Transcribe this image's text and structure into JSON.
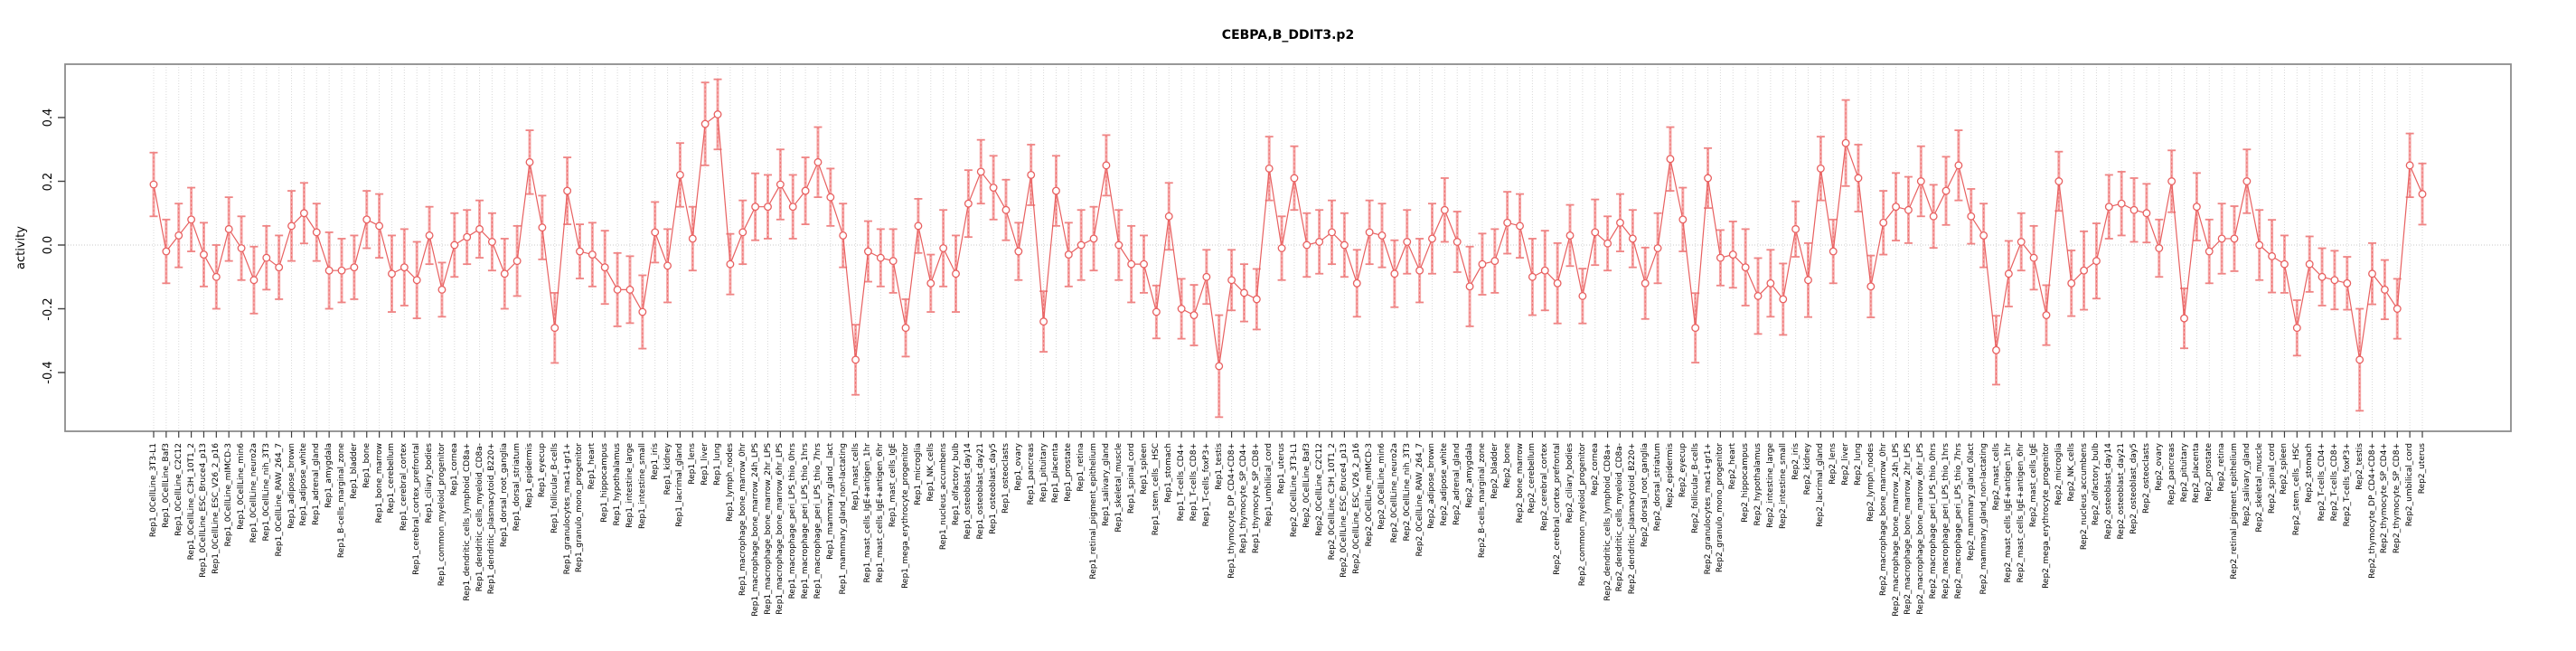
{
  "chart_data": {
    "type": "line",
    "title": "CEBPA,B_DDIT3.p2",
    "ylabel": "activity",
    "xlabel": "",
    "ylim": [
      -0.584,
      0.567
    ],
    "yticks": [
      -0.4,
      -0.2,
      0.0,
      0.2,
      0.4
    ],
    "ytick_labels": [
      "-0.4",
      "-0.2",
      "0.0",
      "0.2",
      "0.4"
    ],
    "grid": "vertical dotted gridline at every sample; horizontal dotted line at y=0",
    "legend": "none",
    "marker": "open-circle",
    "error_bars": "symmetric, capped",
    "replicate_groups": [
      "Rep1",
      "Rep2"
    ],
    "n_samples": 182,
    "colors": {
      "series": "#e86060",
      "errorbar_fill": "#f5a8a8",
      "errorbar_cap": "#ef8484",
      "errorbar_dash": "#ee6f6f",
      "grid": "#d9d9d9",
      "zero_line": "#c9c9c9",
      "box": "#8c8c8c",
      "tick": "#404040",
      "text": "#000000"
    },
    "categories": [
      "Rep1_0CellLine_3T3-L1",
      "Rep1_0CellLine_Baf3",
      "Rep1_0CellLine_C2C12",
      "Rep1_0CellLine_C3H_10T1_2",
      "Rep1_0CellLine_ESC_Bruce4_p13",
      "Rep1_0CellLine_ESC_V26_2_p16",
      "Rep1_0CellLine_mIMCD-3",
      "Rep1_0CellLine_min6",
      "Rep1_0CellLine_neuro2a",
      "Rep1_0CellLine_nih_3T3",
      "Rep1_0CellLine_RAW_264_7",
      "Rep1_adipose_brown",
      "Rep1_adipose_white",
      "Rep1_adrenal_gland",
      "Rep1_amygdala",
      "Rep1_B-cells_marginal_zone",
      "Rep1_bladder",
      "Rep1_bone",
      "Rep1_bone_marrow",
      "Rep1_cerebellum",
      "Rep1_cerebral_cortex",
      "Rep1_cerebral_cortex_prefrontal",
      "Rep1_ciliary_bodies",
      "Rep1_common_myeloid_progenitor",
      "Rep1_cornea",
      "Rep1_dendritic_cells_lymphoid_CD8a+",
      "Rep1_dendritic_cells_myeloid_CD8a-",
      "Rep1_dendritic_plasmacytoid_B220+",
      "Rep1_dorsal_root_ganglia",
      "Rep1_dorsal_striatum",
      "Rep1_epidermis",
      "Rep1_eyecup",
      "Rep1_follicular_B-cells",
      "Rep1_granulocytes_mac1+gr1+",
      "Rep1_granulo_mono_progenitor",
      "Rep1_heart",
      "Rep1_hippocampus",
      "Rep1_hypothalamus",
      "Rep1_intestine_large",
      "Rep1_intestine_small",
      "Rep1_iris",
      "Rep1_kidney",
      "Rep1_lacrimal_gland",
      "Rep1_lens",
      "Rep1_liver",
      "Rep1_lung",
      "Rep1_lymph_nodes",
      "Rep1_macrophage_bone_marrow_0hr",
      "Rep1_macrophage_bone_marrow_24h_LPS",
      "Rep1_macrophage_bone_marrow_2hr_LPS",
      "Rep1_macrophage_bone_marrow_6hr_LPS",
      "Rep1_macrophage_peri_LPS_thio_0hrs",
      "Rep1_macrophage_peri_LPS_thio_1hrs",
      "Rep1_macrophage_peri_LPS_thio_7hrs",
      "Rep1_mammary_gland__lact",
      "Rep1_mammary_gland_non-lactating",
      "Rep1_mast_cells",
      "Rep1_mast_cells_IgE+antigen_1hr",
      "Rep1_mast_cells_IgE+antigen_6hr",
      "Rep1_mast_cells_IgE",
      "Rep1_mega_erythrocyte_progenitor",
      "Rep1_microglia",
      "Rep1_NK_cells",
      "Rep1_nucleus_accumbens",
      "Rep1_olfactory_bulb",
      "Rep1_osteoblast_day14",
      "Rep1_osteoblast_day21",
      "Rep1_osteoblast_day5",
      "Rep1_osteoclasts",
      "Rep1_ovary",
      "Rep1_pancreas",
      "Rep1_pituitary",
      "Rep1_placenta",
      "Rep1_prostate",
      "Rep1_retina",
      "Rep1_retinal_pigment_epithelium",
      "Rep1_salivary_gland",
      "Rep1_skeletal_muscle",
      "Rep1_spinal_cord",
      "Rep1_spleen",
      "Rep1_stem_cells__HSC",
      "Rep1_stomach",
      "Rep1_T-cells_CD4+",
      "Rep1_T-cells_CD8+",
      "Rep1_T-cells_foxP3+",
      "Rep1_testis",
      "Rep1_thymocyte_DP_CD4+CD8+",
      "Rep1_thymocyte_SP_CD4+",
      "Rep1_thymocyte_SP_CD8+",
      "Rep1_umbilical_cord",
      "Rep1_uterus",
      "Rep2_0CellLine_3T3-L1",
      "Rep2_0CellLine_Baf3",
      "Rep2_0CellLine_C2C12",
      "Rep2_0CellLine_C3H_10T1_2",
      "Rep2_0CellLine_ESC_Bruce4_p13",
      "Rep2_0CellLine_ESC_V26_2_p16",
      "Rep2_0CellLine_mIMCD-3",
      "Rep2_0CellLine_min6",
      "Rep2_0CellLine_neuro2a",
      "Rep2_0CellLine_nih_3T3",
      "Rep2_0CellLine_RAW_264_7",
      "Rep2_adipose_brown",
      "Rep2_adipose_white",
      "Rep2_adrenal_gland",
      "Rep2_amygdala",
      "Rep2_B-cells_marginal_zone",
      "Rep2_bladder",
      "Rep2_bone",
      "Rep2_bone_marrow",
      "Rep2_cerebellum",
      "Rep2_cerebral_cortex",
      "Rep2_cerebral_cortex_prefrontal",
      "Rep2_ciliary_bodies",
      "Rep2_common_myeloid_progenitor",
      "Rep2_cornea",
      "Rep2_dendritic_cells_lymphoid_CD8a+",
      "Rep2_dendritic_cells_myeloid_CD8a-",
      "Rep2_dendritic_plasmacytoid_B220+",
      "Rep2_dorsal_root_ganglia",
      "Rep2_dorsal_striatum",
      "Rep2_epidermis",
      "Rep2_eyecup",
      "Rep2_follicular_B-cells",
      "Rep2_granulocytes_mac1+gr1+",
      "Rep2_granulo_mono_progenitor",
      "Rep2_heart",
      "Rep2_hippocampus",
      "Rep2_hypothalamus",
      "Rep2_intestine_large",
      "Rep2_intestine_small",
      "Rep2_iris",
      "Rep2_kidney",
      "Rep2_lacrimal_gland",
      "Rep2_lens",
      "Rep2_liver",
      "Rep2_lung",
      "Rep2_lymph_nodes",
      "Rep2_macrophage_bone_marrow_0hr",
      "Rep2_macrophage_bone_marrow_24h_LPS",
      "Rep2_macrophage_bone_marrow_2hr_LPS",
      "Rep2_macrophage_bone_marrow_6hr_LPS",
      "Rep2_macrophage_peri_LPS_thio_0hrs",
      "Rep2_macrophage_peri_LPS_thio_1hrs",
      "Rep2_macrophage_peri_LPS_thio_7hrs",
      "Rep2_mammary_gland_0lact",
      "Rep2_mammary_gland_non-lactating",
      "Rep2_mast_cells",
      "Rep2_mast_cells_IgE+antigen_1hr",
      "Rep2_mast_cells_IgE+antigen_6hr",
      "Rep2_mast_cells_IgE",
      "Rep2_mega_erythrocyte_progenitor",
      "Rep2_microglia",
      "Rep2_NK_cells",
      "Rep2_nucleus_accumbens",
      "Rep2_olfactory_bulb",
      "Rep2_osteoblast_day14",
      "Rep2_osteoblast_day21",
      "Rep2_osteoblast_day5",
      "Rep2_osteoclasts",
      "Rep2_ovary",
      "Rep2_pancreas",
      "Rep2_pituitary",
      "Rep2_placenta",
      "Rep2_prostate",
      "Rep2_retina",
      "Rep2_retinal_pigment_epithelium",
      "Rep2_salivary_gland",
      "Rep2_skeletal_muscle",
      "Rep2_spinal_cord",
      "Rep2_spleen",
      "Rep2_stem_cells__HSC",
      "Rep2_stomach",
      "Rep2_T-cells_CD4+",
      "Rep2_T-cells_CD8+",
      "Rep2_T-cells_foxP3+",
      "Rep2_testis",
      "Rep2_thymocyte_DP_CD4+CD8+",
      "Rep2_thymocyte_SP_CD4+",
      "Rep2_thymocyte_SP_CD8+",
      "Rep2_umbilical_cord",
      "Rep2_uterus"
    ],
    "values": [
      0.19,
      -0.02,
      0.03,
      0.08,
      -0.03,
      -0.1,
      0.05,
      -0.01,
      -0.11,
      -0.04,
      -0.07,
      0.06,
      0.1,
      0.04,
      -0.08,
      -0.08,
      -0.07,
      0.08,
      0.06,
      -0.09,
      -0.07,
      -0.11,
      0.03,
      -0.14,
      0.0,
      0.025,
      0.05,
      0.01,
      -0.09,
      -0.05,
      0.26,
      0.055,
      -0.26,
      0.17,
      -0.02,
      -0.03,
      -0.07,
      -0.14,
      -0.14,
      -0.21,
      0.04,
      -0.065,
      0.22,
      0.02,
      0.38,
      0.41,
      -0.06,
      0.04,
      0.12,
      0.12,
      0.19,
      0.12,
      0.17,
      0.26,
      0.15,
      0.03,
      -0.36,
      -0.02,
      -0.04,
      -0.05,
      -0.26,
      0.06,
      -0.12,
      -0.01,
      -0.09,
      0.13,
      0.23,
      0.18,
      0.11,
      -0.02,
      0.22,
      -0.24,
      0.17,
      -0.03,
      0.0,
      0.02,
      0.25,
      0.0,
      -0.06,
      -0.06,
      -0.21,
      0.09,
      -0.2,
      -0.22,
      -0.1,
      -0.38,
      -0.11,
      -0.15,
      -0.17,
      0.24,
      -0.01,
      0.21,
      0.0,
      0.01,
      0.04,
      0.0,
      -0.12,
      0.04,
      0.03,
      -0.09,
      0.01,
      -0.08,
      0.02,
      0.11,
      0.01,
      -0.13,
      -0.06,
      -0.05,
      0.07,
      0.06,
      -0.1,
      -0.08,
      -0.12,
      0.03,
      -0.16,
      0.04,
      0.005,
      0.07,
      0.02,
      -0.12,
      -0.01,
      0.27,
      0.08,
      -0.26,
      0.21,
      -0.04,
      -0.03,
      -0.07,
      -0.16,
      -0.12,
      -0.17,
      0.05,
      -0.11,
      0.24,
      -0.02,
      0.32,
      0.21,
      -0.13,
      0.07,
      0.12,
      0.11,
      0.2,
      0.09,
      0.17,
      0.25,
      0.09,
      0.03,
      -0.33,
      -0.09,
      0.01,
      -0.04,
      -0.22,
      0.2,
      -0.12,
      -0.08,
      -0.05,
      0.12,
      0.13,
      0.11,
      0.1,
      -0.01,
      0.2,
      -0.23,
      0.12,
      -0.02,
      0.02,
      0.02,
      0.2,
      0.0,
      -0.035,
      -0.06,
      -0.26,
      -0.06,
      -0.1,
      -0.11,
      -0.12,
      -0.36,
      -0.09,
      -0.14,
      -0.2,
      0.25,
      0.16
    ],
    "errors": [
      0.1,
      0.1,
      0.1,
      0.1,
      0.1,
      0.1,
      0.1,
      0.1,
      0.105,
      0.1,
      0.1,
      0.11,
      0.095,
      0.09,
      0.12,
      0.1,
      0.1,
      0.09,
      0.1,
      0.12,
      0.12,
      0.12,
      0.09,
      0.085,
      0.1,
      0.085,
      0.09,
      0.09,
      0.11,
      0.11,
      0.1,
      0.1,
      0.11,
      0.105,
      0.085,
      0.1,
      0.115,
      0.115,
      0.105,
      0.115,
      0.095,
      0.115,
      0.1,
      0.1,
      0.13,
      0.11,
      0.095,
      0.1,
      0.105,
      0.1,
      0.11,
      0.1,
      0.105,
      0.11,
      0.09,
      0.1,
      0.11,
      0.095,
      0.09,
      0.1,
      0.09,
      0.085,
      0.09,
      0.12,
      0.12,
      0.105,
      0.1,
      0.1,
      0.095,
      0.09,
      0.095,
      0.095,
      0.11,
      0.1,
      0.11,
      0.1,
      0.095,
      0.11,
      0.12,
      0.09,
      0.083,
      0.105,
      0.094,
      0.095,
      0.085,
      0.16,
      0.095,
      0.09,
      0.095,
      0.1,
      0.1,
      0.1,
      0.1,
      0.1,
      0.1,
      0.1,
      0.105,
      0.1,
      0.1,
      0.105,
      0.1,
      0.1,
      0.11,
      0.1,
      0.095,
      0.125,
      0.096,
      0.1,
      0.097,
      0.1,
      0.12,
      0.125,
      0.126,
      0.096,
      0.086,
      0.103,
      0.085,
      0.09,
      0.09,
      0.112,
      0.11,
      0.1,
      0.1,
      0.109,
      0.094,
      0.087,
      0.104,
      0.12,
      0.119,
      0.105,
      0.112,
      0.087,
      0.116,
      0.1,
      0.1,
      0.135,
      0.105,
      0.097,
      0.1,
      0.106,
      0.104,
      0.11,
      0.099,
      0.107,
      0.11,
      0.086,
      0.1,
      0.108,
      0.103,
      0.09,
      0.1,
      0.094,
      0.093,
      0.103,
      0.123,
      0.118,
      0.1,
      0.1,
      0.1,
      0.092,
      0.09,
      0.097,
      0.094,
      0.106,
      0.1,
      0.11,
      0.102,
      0.1,
      0.11,
      0.114,
      0.09,
      0.087,
      0.087,
      0.09,
      0.092,
      0.083,
      0.16,
      0.096,
      0.093,
      0.094,
      0.1,
      0.096
    ]
  }
}
